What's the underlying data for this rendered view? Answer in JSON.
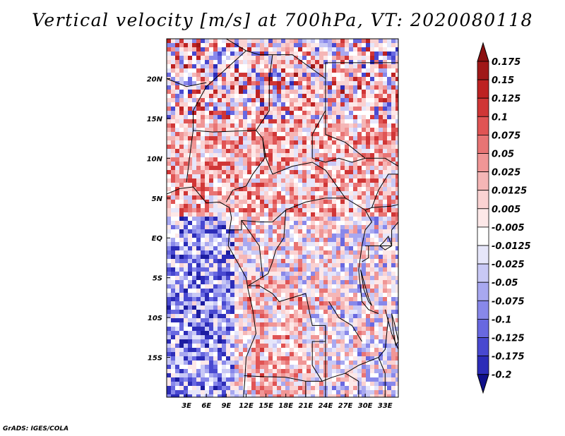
{
  "title": "Vertical velocity [m/s] at 700hPa, VT: 2020080118",
  "credit": "GrADS: IGES/COLA",
  "map": {
    "lon_range": [
      0,
      35
    ],
    "lat_range": [
      -20,
      25
    ],
    "lat_ticks": [
      {
        "value": 20,
        "label": "20N"
      },
      {
        "value": 15,
        "label": "15N"
      },
      {
        "value": 10,
        "label": "10N"
      },
      {
        "value": 5,
        "label": "5N"
      },
      {
        "value": 0,
        "label": "EQ"
      },
      {
        "value": -5,
        "label": "5S"
      },
      {
        "value": -10,
        "label": "10S"
      },
      {
        "value": -15,
        "label": "15S"
      }
    ],
    "lon_ticks": [
      {
        "value": 3,
        "label": "3E"
      },
      {
        "value": 6,
        "label": "6E"
      },
      {
        "value": 9,
        "label": "9E"
      },
      {
        "value": 12,
        "label": "12E"
      },
      {
        "value": 15,
        "label": "15E"
      },
      {
        "value": 18,
        "label": "18E"
      },
      {
        "value": 21,
        "label": "21E"
      },
      {
        "value": 24,
        "label": "24E"
      },
      {
        "value": 27,
        "label": "27E"
      },
      {
        "value": 30,
        "label": "30E"
      },
      {
        "value": 33,
        "label": "33E"
      }
    ]
  },
  "colorbar": {
    "levels": [
      {
        "label": "0.175",
        "color": "#a01818"
      },
      {
        "label": "0.15",
        "color": "#bd2222"
      },
      {
        "label": "0.125",
        "color": "#d03636"
      },
      {
        "label": "0.1",
        "color": "#e05454"
      },
      {
        "label": "0.075",
        "color": "#e87474"
      },
      {
        "label": "0.05",
        "color": "#f09696"
      },
      {
        "label": "0.025",
        "color": "#f5b6b6"
      },
      {
        "label": "0.0125",
        "color": "#fad2d2"
      },
      {
        "label": "0.005",
        "color": "#fde8e8"
      },
      {
        "label": "-0.005",
        "color": "#ffffff"
      },
      {
        "label": "-0.0125",
        "color": "#e6e6fa"
      },
      {
        "label": "-0.025",
        "color": "#c8c8f5"
      },
      {
        "label": "-0.05",
        "color": "#a8a8f0"
      },
      {
        "label": "-0.075",
        "color": "#8888ea"
      },
      {
        "label": "-0.1",
        "color": "#6868e0"
      },
      {
        "label": "-0.125",
        "color": "#4848d0"
      },
      {
        "label": "-0.175",
        "color": "#2c2cb8"
      },
      {
        "label": "-0.2",
        "color": "#1c1ca0"
      }
    ],
    "top_color": "#8b1010",
    "bottom_color": "#10108a"
  }
}
